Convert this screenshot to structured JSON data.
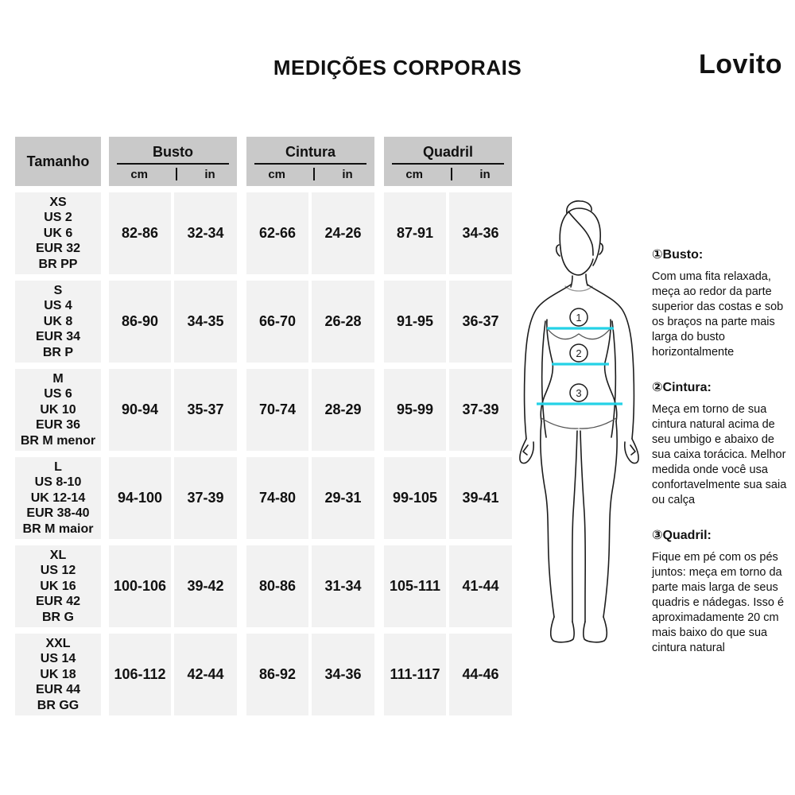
{
  "header": {
    "title": "MEDIÇÕES CORPORAIS",
    "brand": "Lovito"
  },
  "colors": {
    "header_bg": "#c9c9c9",
    "cell_bg": "#f2f2f2",
    "accent_cyan": "#25d2e6"
  },
  "table": {
    "size_column_header": "Tamanho",
    "groups": [
      {
        "label": "Busto",
        "units": [
          "cm",
          "in"
        ]
      },
      {
        "label": "Cintura",
        "units": [
          "cm",
          "in"
        ]
      },
      {
        "label": "Quadril",
        "units": [
          "cm",
          "in"
        ]
      }
    ],
    "rows": [
      {
        "size_lines": [
          "XS",
          "US 2",
          "UK 6",
          "EUR 32",
          "BR PP"
        ],
        "values": [
          "82-86",
          "32-34",
          "62-66",
          "24-26",
          "87-91",
          "34-36"
        ]
      },
      {
        "size_lines": [
          "S",
          "US 4",
          "UK 8",
          "EUR 34",
          "BR P"
        ],
        "values": [
          "86-90",
          "34-35",
          "66-70",
          "26-28",
          "91-95",
          "36-37"
        ]
      },
      {
        "size_lines": [
          "M",
          "US 6",
          "UK 10",
          "EUR 36",
          "BR M menor"
        ],
        "values": [
          "90-94",
          "35-37",
          "70-74",
          "28-29",
          "95-99",
          "37-39"
        ]
      },
      {
        "size_lines": [
          "L",
          "US 8-10",
          "UK 12-14",
          "EUR 38-40",
          "BR M maior"
        ],
        "values": [
          "94-100",
          "37-39",
          "74-80",
          "29-31",
          "99-105",
          "39-41"
        ]
      },
      {
        "size_lines": [
          "XL",
          "US 12",
          "UK 16",
          "EUR 42",
          "BR G"
        ],
        "values": [
          "100-106",
          "39-42",
          "80-86",
          "31-34",
          "105-111",
          "41-44"
        ]
      },
      {
        "size_lines": [
          "XXL",
          "US 14",
          "UK 18",
          "EUR 44",
          "BR GG"
        ],
        "values": [
          "106-112",
          "42-44",
          "86-92",
          "34-36",
          "111-117",
          "44-46"
        ]
      }
    ]
  },
  "figure": {
    "markers": [
      "1",
      "2",
      "3"
    ],
    "line_color": "#25d2e6"
  },
  "instructions": [
    {
      "heading": "①Busto:",
      "body": "Com uma fita relaxada, meça ao redor da parte superior das costas e sob os braços na parte mais larga do busto horizontalmente"
    },
    {
      "heading": "②Cintura:",
      "body": "Meça em torno de sua cintura natural acima de seu umbigo e abaixo de sua caixa torácica. Melhor medida onde você usa confortavelmente sua saia ou calça"
    },
    {
      "heading": "③Quadril:",
      "body": "Fique em pé com os pés juntos: meça em torno da parte mais larga de seus quadris e nádegas. Isso é aproximadamente 20 cm mais baixo do que sua cintura natural"
    }
  ]
}
